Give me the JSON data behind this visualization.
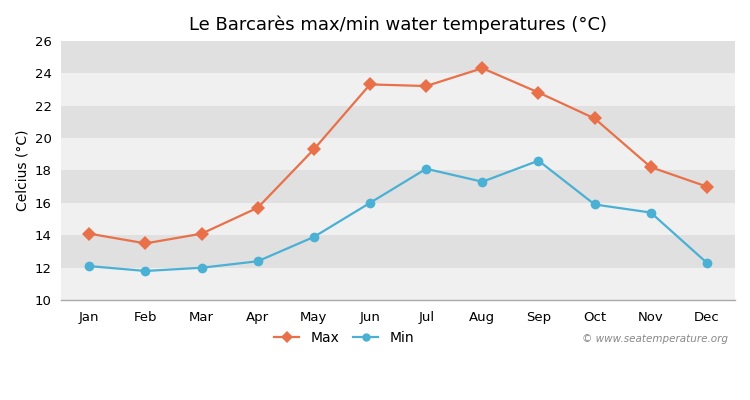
{
  "title": "Le Barcarès max/min water temperatures (°C)",
  "ylabel": "Celcius (°C)",
  "months": [
    "Jan",
    "Feb",
    "Mar",
    "Apr",
    "May",
    "Jun",
    "Jul",
    "Aug",
    "Sep",
    "Oct",
    "Nov",
    "Dec"
  ],
  "max_temps": [
    14.1,
    13.5,
    14.1,
    15.7,
    19.3,
    23.3,
    23.2,
    24.3,
    22.8,
    21.2,
    18.2,
    17.0
  ],
  "min_temps": [
    12.1,
    11.8,
    12.0,
    12.4,
    13.9,
    16.0,
    18.1,
    17.3,
    18.6,
    15.9,
    15.4,
    12.3
  ],
  "max_color": "#e8714a",
  "min_color": "#4ab0d4",
  "ylim": [
    10,
    26
  ],
  "yticks": [
    10,
    12,
    14,
    16,
    18,
    20,
    22,
    24,
    26
  ],
  "band_colors": [
    "#f0f0f0",
    "#e0e0e0"
  ],
  "fig_bg": "#ffffff",
  "spine_color": "#aaaaaa",
  "watermark": "© www.seatemperature.org",
  "legend_max": "Max",
  "legend_min": "Min",
  "title_fontsize": 13,
  "axis_label_fontsize": 10,
  "tick_fontsize": 9.5,
  "legend_fontsize": 10,
  "max_marker": "D",
  "min_marker": "o",
  "max_markersize": 7,
  "min_markersize": 7,
  "line_width": 1.6
}
